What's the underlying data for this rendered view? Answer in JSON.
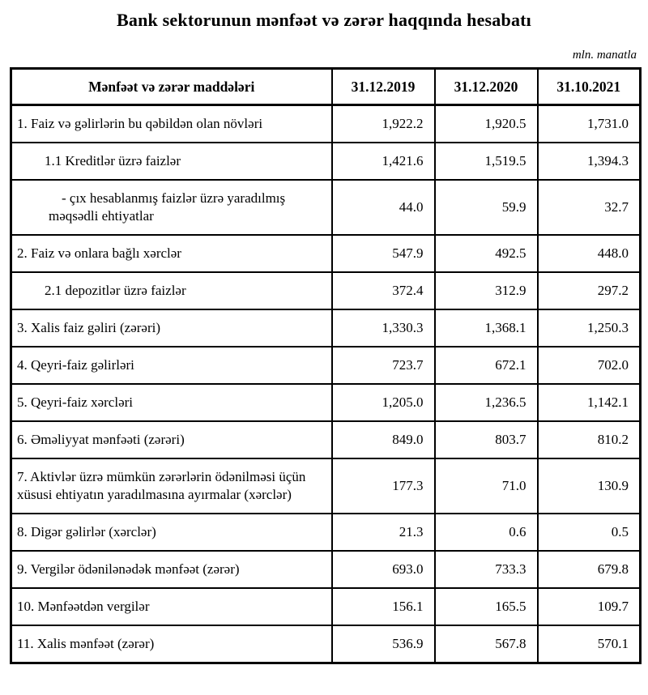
{
  "page": {
    "title": "Bank sektorunun mənfəət və zərər haqqında hesabatı",
    "unit_note": "mln. manatla"
  },
  "table": {
    "header": {
      "label": "Mənfəət və zərər maddələri",
      "columns": [
        "31.12.2019",
        "31.12.2020",
        "31.10.2021"
      ]
    },
    "rows": [
      {
        "label": "1. Faiz və gəlirlərin bu qəbildən olan növləri",
        "indent": 0,
        "values": [
          "1,922.2",
          "1,920.5",
          "1,731.0"
        ]
      },
      {
        "label": "1.1 Kreditlər üzrə faizlər",
        "indent": 1,
        "values": [
          "1,421.6",
          "1,519.5",
          "1,394.3"
        ]
      },
      {
        "label": "- çıx hesablanmış faizlər üzrə yaradılmış məqsədli ehtiyatlar",
        "indent": 2,
        "values": [
          "44.0",
          "59.9",
          "32.7"
        ]
      },
      {
        "label": "2. Faiz və onlara bağlı xərclər",
        "indent": 0,
        "values": [
          "547.9",
          "492.5",
          "448.0"
        ]
      },
      {
        "label": "2.1 depozitlər üzrə faizlər",
        "indent": 1,
        "values": [
          "372.4",
          "312.9",
          "297.2"
        ]
      },
      {
        "label": "3. Xalis faiz gəliri (zərəri)",
        "indent": 0,
        "values": [
          "1,330.3",
          "1,368.1",
          "1,250.3"
        ]
      },
      {
        "label": "4. Qeyri-faiz gəlirləri",
        "indent": 0,
        "values": [
          "723.7",
          "672.1",
          "702.0"
        ]
      },
      {
        "label": "5. Qeyri-faiz xərcləri",
        "indent": 0,
        "values": [
          "1,205.0",
          "1,236.5",
          "1,142.1"
        ]
      },
      {
        "label": "6. Əməliyyat mənfəəti (zərəri)",
        "indent": 0,
        "values": [
          "849.0",
          "803.7",
          "810.2"
        ]
      },
      {
        "label": "7. Aktivlər üzrə mümkün zərərlərin ödənilməsi üçün xüsusi ehtiyatın yaradılmasına ayırmalar (xərclər)",
        "indent": 0,
        "values": [
          "177.3",
          "71.0",
          "130.9"
        ]
      },
      {
        "label": "8. Digər gəlirlər (xərclər)",
        "indent": 0,
        "values": [
          "21.3",
          "0.6",
          "0.5"
        ]
      },
      {
        "label": "9. Vergilər ödənilənədək mənfəət (zərər)",
        "indent": 0,
        "values": [
          "693.0",
          "733.3",
          "679.8"
        ]
      },
      {
        "label": "10. Mənfəətdən vergilər",
        "indent": 0,
        "values": [
          "156.1",
          "165.5",
          "109.7"
        ]
      },
      {
        "label": "11. Xalis mənfəət (zərər)",
        "indent": 0,
        "values": [
          "536.9",
          "567.8",
          "570.1"
        ]
      }
    ]
  }
}
